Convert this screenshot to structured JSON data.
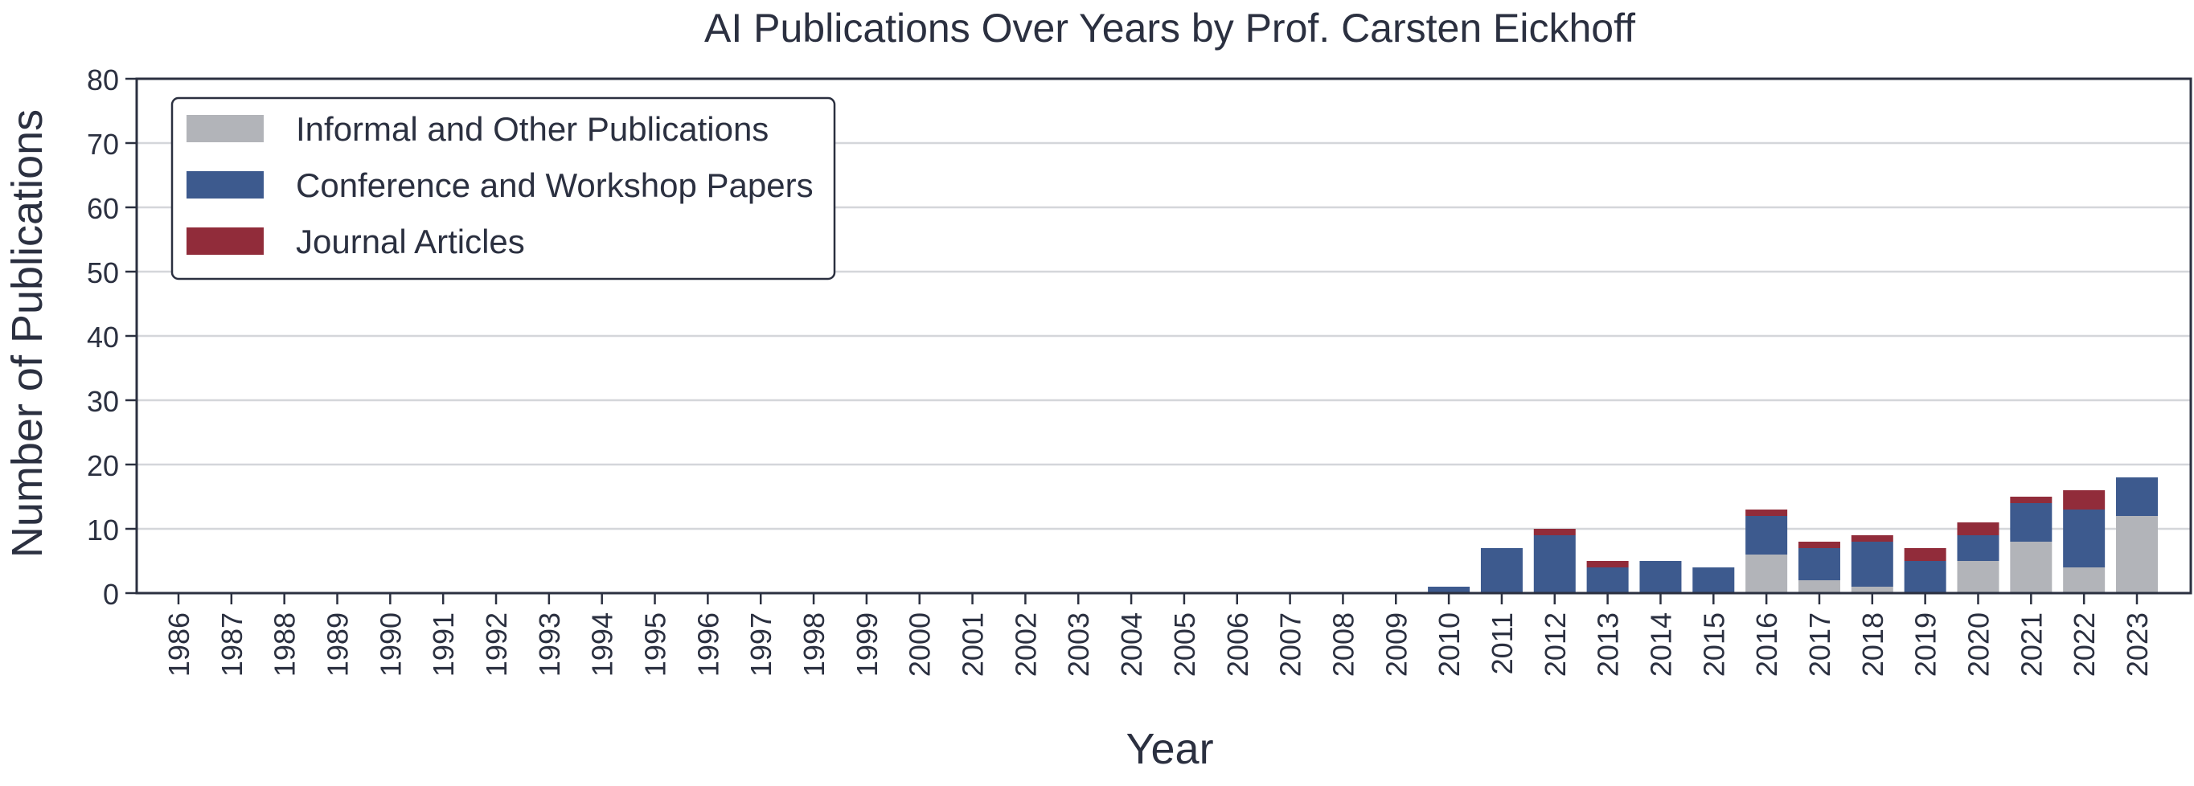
{
  "chart_data": {
    "type": "bar",
    "stacked": true,
    "title": "AI Publications Over Years by Prof. Carsten Eickhoff",
    "xlabel": "Year",
    "ylabel": "Number of Publications",
    "ylim": [
      0,
      80
    ],
    "yticks": [
      "0",
      "10",
      "20",
      "30",
      "40",
      "50",
      "60",
      "70",
      "80"
    ],
    "grid": "horizontal",
    "legend_position": "top-left",
    "categories": [
      "1986",
      "1987",
      "1988",
      "1989",
      "1990",
      "1991",
      "1992",
      "1993",
      "1994",
      "1995",
      "1996",
      "1997",
      "1998",
      "1999",
      "2000",
      "2001",
      "2002",
      "2003",
      "2004",
      "2005",
      "2006",
      "2007",
      "2008",
      "2009",
      "2010",
      "2011",
      "2012",
      "2013",
      "2014",
      "2015",
      "2016",
      "2017",
      "2018",
      "2019",
      "2020",
      "2021",
      "2022",
      "2023"
    ],
    "series": [
      {
        "name": "Informal and Other Publications",
        "color": "#b2b4b9",
        "values": [
          0,
          0,
          0,
          0,
          0,
          0,
          0,
          0,
          0,
          0,
          0,
          0,
          0,
          0,
          0,
          0,
          0,
          0,
          0,
          0,
          0,
          0,
          0,
          0,
          0,
          0,
          0,
          0,
          0,
          0,
          6,
          2,
          1,
          0,
          5,
          8,
          4,
          12
        ]
      },
      {
        "name": "Conference and Workshop Papers",
        "color": "#3d5a8e",
        "values": [
          0,
          0,
          0,
          0,
          0,
          0,
          0,
          0,
          0,
          0,
          0,
          0,
          0,
          0,
          0,
          0,
          0,
          0,
          0,
          0,
          0,
          0,
          0,
          0,
          1,
          7,
          9,
          4,
          5,
          4,
          6,
          5,
          7,
          5,
          4,
          6,
          9,
          6
        ]
      },
      {
        "name": "Journal Articles",
        "color": "#912c3a",
        "values": [
          0,
          0,
          0,
          0,
          0,
          0,
          0,
          0,
          0,
          0,
          0,
          0,
          0,
          0,
          0,
          0,
          0,
          0,
          0,
          0,
          0,
          0,
          0,
          0,
          0,
          0,
          1,
          1,
          0,
          0,
          1,
          1,
          1,
          2,
          2,
          1,
          3,
          0
        ]
      }
    ]
  }
}
